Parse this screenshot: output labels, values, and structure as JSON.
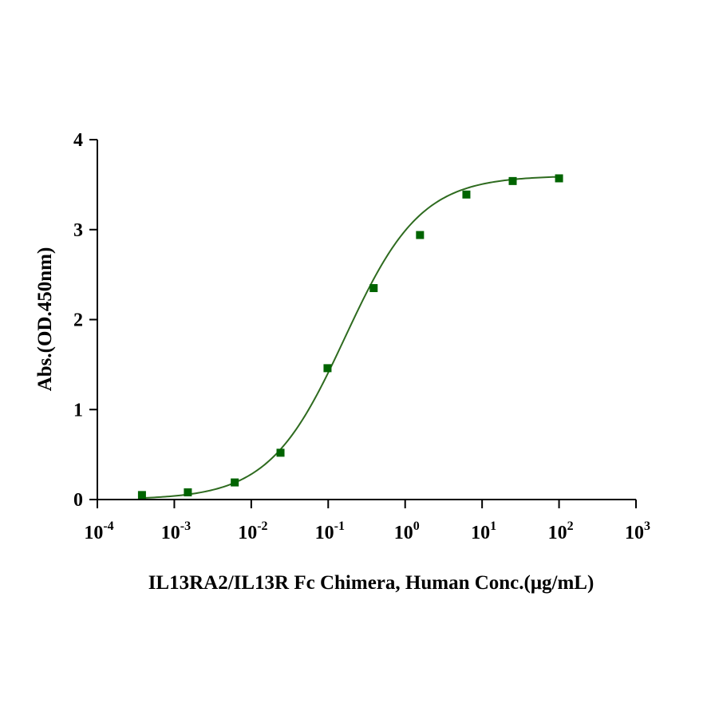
{
  "chart_data": {
    "type": "scatter",
    "title": "",
    "xlabel": "IL13RA2/IL13R Fc Chimera, Human Conc.(μg/mL)",
    "ylabel": "Abs.(OD.450nm)",
    "x_scale": "log",
    "xlim": [
      0.0001,
      1000
    ],
    "ylim": [
      0,
      4
    ],
    "x_ticks": [
      {
        "base": "10",
        "exp": "-4"
      },
      {
        "base": "10",
        "exp": "-3"
      },
      {
        "base": "10",
        "exp": "-2"
      },
      {
        "base": "10",
        "exp": "-1"
      },
      {
        "base": "10",
        "exp": "0"
      },
      {
        "base": "10",
        "exp": "1"
      },
      {
        "base": "10",
        "exp": "2"
      },
      {
        "base": "10",
        "exp": "3"
      }
    ],
    "y_ticks": [
      "0",
      "1",
      "2",
      "3",
      "4"
    ],
    "grid": false,
    "legend": "none",
    "marker_color": "#006400",
    "curve_color": "#2e6b1f",
    "series": [
      {
        "marker": "square",
        "x": [
          0.00038,
          0.0015,
          0.0061,
          0.024,
          0.098,
          0.39,
          1.56,
          6.25,
          25,
          100
        ],
        "y": [
          0.05,
          0.08,
          0.19,
          0.52,
          1.46,
          2.35,
          2.94,
          3.39,
          3.54,
          3.57
        ]
      }
    ],
    "fit": {
      "type": "4PL",
      "bottom": 0.0,
      "top": 3.6,
      "ec50": 0.165,
      "hill": 0.88
    }
  }
}
